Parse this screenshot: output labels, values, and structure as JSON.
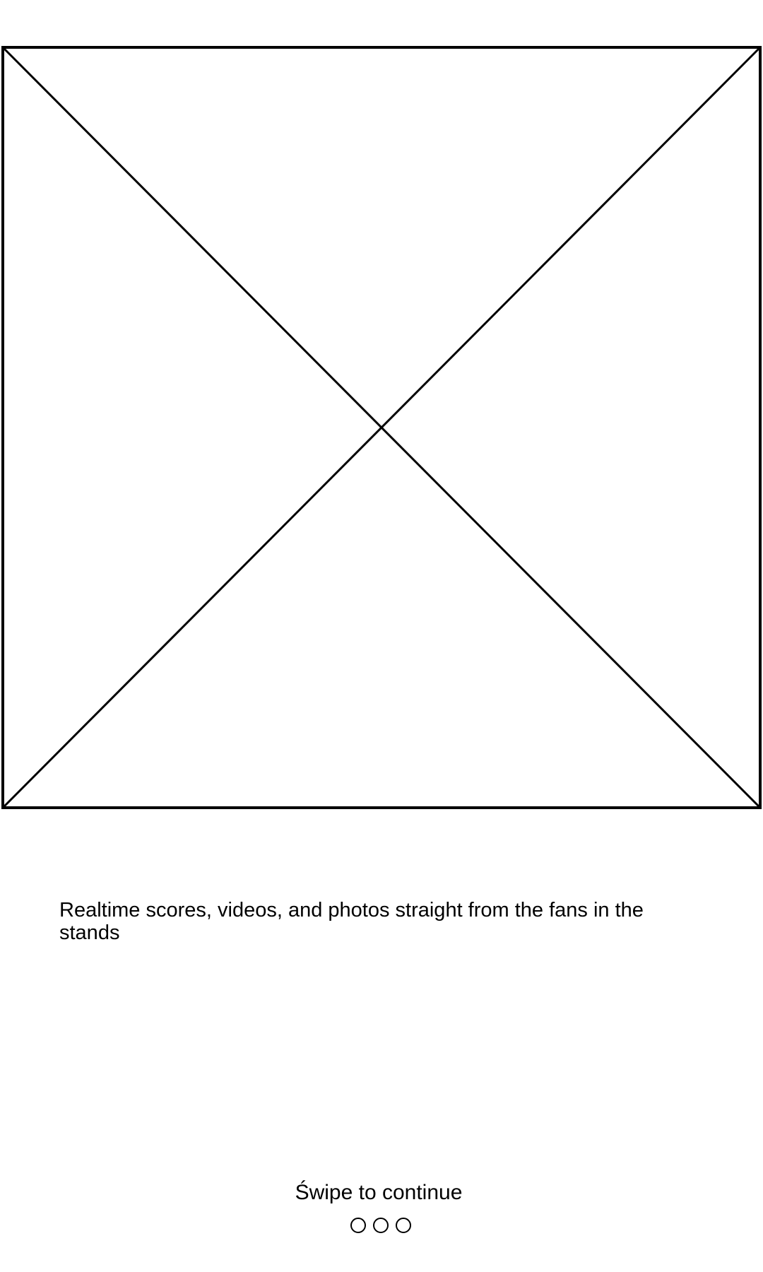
{
  "onboarding": {
    "image": {
      "icon": "image-placeholder-icon"
    },
    "tagline": "Realtime scores, videos, and photos straight from the fans in the stands",
    "swipe_hint": "Świpe to continue",
    "pager": {
      "page_count": 3,
      "active_index": null
    }
  },
  "colors": {
    "stroke": "#000000",
    "background": "#ffffff"
  }
}
